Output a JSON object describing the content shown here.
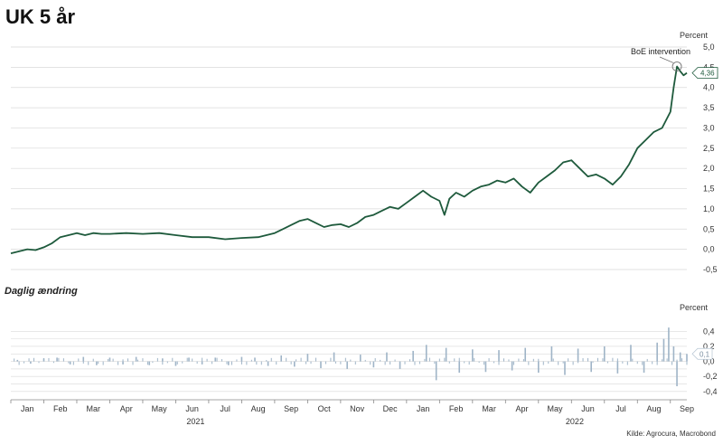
{
  "title": "UK 5 år",
  "subchart_title": "Daglig ændring",
  "source": "Kilde: Agrocura, Macrobond",
  "colors": {
    "line": "#1e5a3c",
    "bars": "#9fb4c7",
    "grid": "#d9d9d9",
    "axis": "#888888"
  },
  "chart_data": [
    {
      "type": "line",
      "title": "UK 5 år",
      "ylabel": "Percent",
      "ylim": [
        -0.5,
        5.0
      ],
      "y_ticks": [
        "-0,5",
        "0,0",
        "0,5",
        "1,0",
        "1,5",
        "2,0",
        "2,5",
        "3,0",
        "3,5",
        "4,0",
        "4,5",
        "5,0"
      ],
      "grid": true,
      "x_months": [
        "Jan",
        "Feb",
        "Mar",
        "Apr",
        "May",
        "Jun",
        "Jul",
        "Aug",
        "Sep",
        "Oct",
        "Nov",
        "Dec",
        "Jan",
        "Feb",
        "Mar",
        "Apr",
        "May",
        "Jun",
        "Jul",
        "Aug",
        "Sep"
      ],
      "x_years": [
        "2021",
        "2022"
      ],
      "annotation": "BoE intervention",
      "last_value_label": "4,36",
      "last_value": 4.36,
      "series": [
        {
          "x": [
            0,
            0.25,
            0.5,
            0.75,
            1,
            1.25,
            1.5,
            1.75,
            2,
            2.25,
            2.5,
            2.75,
            3,
            3.5,
            4,
            4.5,
            5,
            5.5,
            6,
            6.5,
            7,
            7.5,
            8,
            8.25,
            8.5,
            8.75,
            9,
            9.25,
            9.5,
            9.75,
            10,
            10.25,
            10.5,
            10.75,
            11,
            11.25,
            11.5,
            11.75,
            12,
            12.25,
            12.5,
            12.75,
            13,
            13.15,
            13.3,
            13.5,
            13.75,
            14,
            14.25,
            14.5,
            14.75,
            15,
            15.25,
            15.5,
            15.75,
            16,
            16.25,
            16.5,
            16.75,
            17,
            17.25,
            17.5,
            17.75,
            18,
            18.25,
            18.5,
            18.75,
            19,
            19.25,
            19.5,
            19.75,
            20,
            20.1,
            20.2,
            20.3,
            20.4,
            20.5
          ],
          "y": [
            -0.1,
            -0.05,
            0.0,
            -0.02,
            0.05,
            0.15,
            0.3,
            0.35,
            0.4,
            0.35,
            0.4,
            0.38,
            0.38,
            0.4,
            0.38,
            0.4,
            0.35,
            0.3,
            0.3,
            0.25,
            0.28,
            0.3,
            0.4,
            0.5,
            0.6,
            0.7,
            0.75,
            0.65,
            0.55,
            0.6,
            0.62,
            0.55,
            0.65,
            0.8,
            0.85,
            0.95,
            1.05,
            1.0,
            1.15,
            1.3,
            1.45,
            1.3,
            1.2,
            0.85,
            1.25,
            1.4,
            1.3,
            1.45,
            1.55,
            1.6,
            1.7,
            1.65,
            1.75,
            1.55,
            1.4,
            1.65,
            1.8,
            1.95,
            2.15,
            2.2,
            2.0,
            1.8,
            1.85,
            1.75,
            1.6,
            1.8,
            2.1,
            2.5,
            2.7,
            2.9,
            3.0,
            3.4,
            4.0,
            4.52,
            4.4,
            4.3,
            4.36
          ]
        }
      ]
    },
    {
      "type": "bar",
      "title": "Daglig ændring",
      "ylabel": "Percent",
      "ylim": [
        -0.45,
        0.5
      ],
      "y_ticks": [
        "-0,4",
        "-0,2",
        "0,0",
        "0,2",
        "0,4"
      ],
      "last_value_label": "0,1",
      "series": [
        {
          "x": [
            0.2,
            0.6,
            1.0,
            1.4,
            1.8,
            2.2,
            2.6,
            3.0,
            3.4,
            3.8,
            4.2,
            4.6,
            5.0,
            5.4,
            5.8,
            6.2,
            6.6,
            7.0,
            7.4,
            7.8,
            8.2,
            8.6,
            9.0,
            9.4,
            9.8,
            10.2,
            10.6,
            11.0,
            11.4,
            11.8,
            12.2,
            12.6,
            12.9,
            13.2,
            13.6,
            14.0,
            14.4,
            14.8,
            15.2,
            15.6,
            16.0,
            16.4,
            16.8,
            17.2,
            17.6,
            18.0,
            18.4,
            18.8,
            19.2,
            19.6,
            19.8,
            19.95,
            20.1,
            20.2,
            20.3,
            20.5
          ],
          "values": [
            0.02,
            -0.03,
            0.04,
            0.05,
            -0.04,
            0.06,
            -0.05,
            0.05,
            -0.04,
            0.06,
            -0.05,
            0.04,
            -0.06,
            0.05,
            -0.04,
            0.05,
            -0.05,
            0.06,
            0.05,
            -0.06,
            0.08,
            -0.07,
            0.1,
            -0.09,
            0.12,
            -0.1,
            0.09,
            -0.08,
            0.12,
            -0.1,
            0.14,
            0.22,
            -0.25,
            0.18,
            -0.15,
            0.16,
            -0.14,
            0.15,
            -0.12,
            0.18,
            -0.15,
            0.2,
            -0.18,
            0.17,
            -0.14,
            0.2,
            -0.16,
            0.22,
            -0.15,
            0.25,
            0.3,
            0.45,
            0.2,
            -0.33,
            0.12,
            0.1
          ]
        }
      ]
    }
  ]
}
